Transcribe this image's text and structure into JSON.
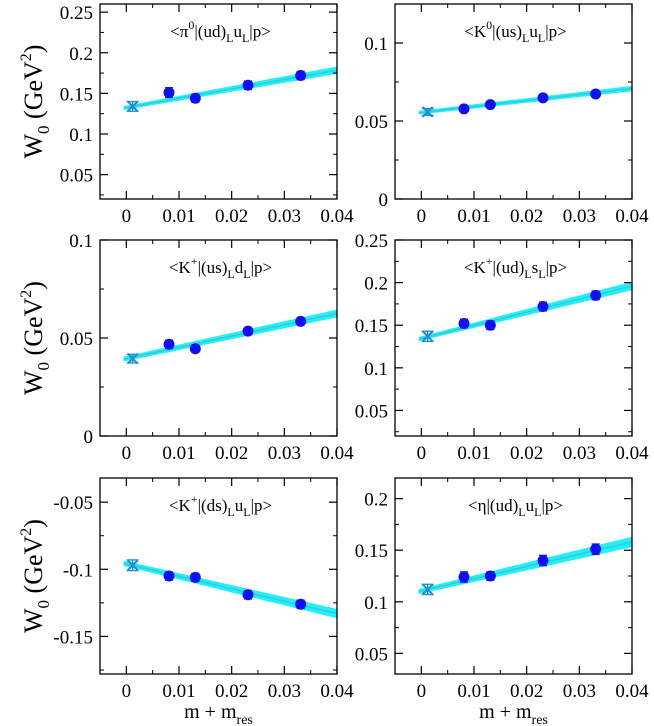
{
  "figure": {
    "ylabel_base": "W",
    "ylabel_sub": "0",
    "ylabel_unit_open": "(GeV",
    "ylabel_unit_sup": "2",
    "ylabel_unit_close": ")",
    "xlabel_base": "m + m",
    "xlabel_sub": "res"
  },
  "colors": {
    "band": "#22f0f8",
    "line": "#38c8d8",
    "point": "#1010ee",
    "chiral_point": "#1e8cd0",
    "axis": "#000000"
  },
  "chart_data": [
    {
      "type": "scatter",
      "title_parts": [
        [
          "<",
          ""
        ],
        [
          "π",
          ""
        ],
        [
          "0",
          "sup"
        ],
        [
          "|(ud)",
          ""
        ],
        [
          "L",
          "sub"
        ],
        [
          "u",
          ""
        ],
        [
          "L",
          "sub"
        ],
        [
          "|p>",
          ""
        ]
      ],
      "xlim": [
        -0.005,
        0.04
      ],
      "ylim": [
        0.02,
        0.26
      ],
      "xticks": [
        0,
        0.01,
        0.02,
        0.03,
        0.04
      ],
      "xticklabels": [
        "0",
        "0.01",
        "0.02",
        "0.03",
        "0.04"
      ],
      "yticks": [
        0.05,
        0.1,
        0.15,
        0.2,
        0.25
      ],
      "yticklabels": [
        "0.05",
        "0.1",
        "0.15",
        "0.2",
        "0.25"
      ],
      "show_xlabel": false,
      "show_ylabel": true,
      "points": [
        {
          "x": 0.0081,
          "y": 0.151,
          "err": 0.006
        },
        {
          "x": 0.0131,
          "y": 0.144,
          "err": 0.005
        },
        {
          "x": 0.0231,
          "y": 0.16,
          "err": 0.005
        },
        {
          "x": 0.0331,
          "y": 0.172,
          "err": 0.005
        }
      ],
      "chiral_point": {
        "x": 0.0012,
        "y": 0.134,
        "err": 0.006
      },
      "fit": {
        "x": [
          0,
          0.04
        ],
        "y": [
          0.1325,
          0.1785
        ],
        "band_width": [
          0.005,
          0.009
        ]
      }
    },
    {
      "type": "scatter",
      "title_parts": [
        [
          "<",
          ""
        ],
        [
          "K",
          ""
        ],
        [
          "0",
          "sup"
        ],
        [
          "|(us)",
          ""
        ],
        [
          "L",
          "sub"
        ],
        [
          "u",
          ""
        ],
        [
          "L",
          "sub"
        ],
        [
          "|p>",
          ""
        ]
      ],
      "xlim": [
        -0.005,
        0.04
      ],
      "ylim": [
        0,
        0.125
      ],
      "xticks": [
        0,
        0.01,
        0.02,
        0.03,
        0.04
      ],
      "xticklabels": [
        "0",
        "0.01",
        "0.02",
        "0.03",
        "0.04"
      ],
      "yticks": [
        0,
        0.05,
        0.1
      ],
      "yticklabels": [
        "0",
        "0.05",
        "0.1"
      ],
      "show_xlabel": false,
      "show_ylabel": false,
      "points": [
        {
          "x": 0.0081,
          "y": 0.0578,
          "err": 0.002
        },
        {
          "x": 0.0131,
          "y": 0.0605,
          "err": 0.002
        },
        {
          "x": 0.0231,
          "y": 0.0648,
          "err": 0.0018
        },
        {
          "x": 0.0331,
          "y": 0.0673,
          "err": 0.0018
        }
      ],
      "chiral_point": {
        "x": 0.0012,
        "y": 0.0558,
        "err": 0.0022
      },
      "fit": {
        "x": [
          0,
          0.04
        ],
        "y": [
          0.0555,
          0.0708
        ],
        "band_width": [
          0.0025,
          0.0035
        ]
      }
    },
    {
      "type": "scatter",
      "title_parts": [
        [
          "<",
          ""
        ],
        [
          "K",
          ""
        ],
        [
          "+",
          "sup"
        ],
        [
          "|(us)",
          ""
        ],
        [
          "L",
          "sub"
        ],
        [
          "d",
          ""
        ],
        [
          "L",
          "sub"
        ],
        [
          "|p>",
          ""
        ]
      ],
      "xlim": [
        -0.005,
        0.04
      ],
      "ylim": [
        0,
        0.1
      ],
      "xticks": [
        0,
        0.01,
        0.02,
        0.03,
        0.04
      ],
      "xticklabels": [
        "0",
        "0.01",
        "0.02",
        "0.03",
        "0.04"
      ],
      "yticks": [
        0,
        0.05,
        0.1
      ],
      "yticklabels": [
        "0",
        "0.05",
        "0.1"
      ],
      "show_xlabel": false,
      "show_ylabel": true,
      "points": [
        {
          "x": 0.0081,
          "y": 0.0468,
          "err": 0.002
        },
        {
          "x": 0.0131,
          "y": 0.0445,
          "err": 0.0018
        },
        {
          "x": 0.0231,
          "y": 0.0535,
          "err": 0.0018
        },
        {
          "x": 0.0331,
          "y": 0.0585,
          "err": 0.0018
        }
      ],
      "chiral_point": {
        "x": 0.0012,
        "y": 0.0395,
        "err": 0.0022
      },
      "fit": {
        "x": [
          0,
          0.04
        ],
        "y": [
          0.0395,
          0.0625
        ],
        "band_width": [
          0.0025,
          0.004
        ]
      }
    },
    {
      "type": "scatter",
      "title_parts": [
        [
          "<",
          ""
        ],
        [
          "K",
          ""
        ],
        [
          "+",
          "sup"
        ],
        [
          "|(ud)",
          ""
        ],
        [
          "L",
          "sub"
        ],
        [
          "s",
          ""
        ],
        [
          "L",
          "sub"
        ],
        [
          "|p>",
          ""
        ]
      ],
      "xlim": [
        -0.005,
        0.04
      ],
      "ylim": [
        0.02,
        0.25
      ],
      "xticks": [
        0,
        0.01,
        0.02,
        0.03,
        0.04
      ],
      "xticklabels": [
        "0",
        "0.01",
        "0.02",
        "0.03",
        "0.04"
      ],
      "yticks": [
        0.05,
        0.1,
        0.15,
        0.2,
        0.25
      ],
      "yticklabels": [
        "0.05",
        "0.1",
        "0.15",
        "0.2",
        "0.25"
      ],
      "show_xlabel": false,
      "show_ylabel": false,
      "points": [
        {
          "x": 0.0081,
          "y": 0.152,
          "err": 0.005
        },
        {
          "x": 0.0131,
          "y": 0.15,
          "err": 0.005
        },
        {
          "x": 0.0231,
          "y": 0.172,
          "err": 0.005
        },
        {
          "x": 0.0331,
          "y": 0.185,
          "err": 0.005
        }
      ],
      "chiral_point": {
        "x": 0.0012,
        "y": 0.137,
        "err": 0.006
      },
      "fit": {
        "x": [
          0,
          0.04
        ],
        "y": [
          0.1345,
          0.196
        ],
        "band_width": [
          0.005,
          0.01
        ]
      }
    },
    {
      "type": "scatter",
      "title_parts": [
        [
          "<",
          ""
        ],
        [
          "K",
          ""
        ],
        [
          "+",
          "sup"
        ],
        [
          "|(ds)",
          ""
        ],
        [
          "L",
          "sub"
        ],
        [
          "u",
          ""
        ],
        [
          "L",
          "sub"
        ],
        [
          "|p>",
          ""
        ]
      ],
      "xlim": [
        -0.005,
        0.04
      ],
      "ylim": [
        -0.178,
        -0.032
      ],
      "xticks": [
        0,
        0.01,
        0.02,
        0.03,
        0.04
      ],
      "xticklabels": [
        "0",
        "0.01",
        "0.02",
        "0.03",
        "0.04"
      ],
      "yticks": [
        -0.15,
        -0.1,
        -0.05
      ],
      "yticklabels": [
        "-0.15",
        "-0.1",
        "-0.05"
      ],
      "show_xlabel": true,
      "show_ylabel": true,
      "points": [
        {
          "x": 0.0081,
          "y": -0.105,
          "err": 0.003
        },
        {
          "x": 0.0131,
          "y": -0.106,
          "err": 0.003
        },
        {
          "x": 0.0231,
          "y": -0.119,
          "err": 0.003
        },
        {
          "x": 0.0331,
          "y": -0.126,
          "err": 0.003
        }
      ],
      "chiral_point": {
        "x": 0.0012,
        "y": -0.097,
        "err": 0.004
      },
      "fit": {
        "x": [
          0,
          0.04
        ],
        "y": [
          -0.096,
          -0.133
        ],
        "band_width": [
          0.004,
          0.007
        ]
      }
    },
    {
      "type": "scatter",
      "title_parts": [
        [
          "<",
          ""
        ],
        [
          "η",
          ""
        ],
        [
          "|(ud)",
          ""
        ],
        [
          "L",
          "sub"
        ],
        [
          "u",
          ""
        ],
        [
          "L",
          "sub"
        ],
        [
          "|p>",
          ""
        ]
      ],
      "xlim": [
        -0.005,
        0.04
      ],
      "ylim": [
        0.03,
        0.22
      ],
      "xticks": [
        0,
        0.01,
        0.02,
        0.03,
        0.04
      ],
      "xticklabels": [
        "0",
        "0.01",
        "0.02",
        "0.03",
        "0.04"
      ],
      "yticks": [
        0.05,
        0.1,
        0.15,
        0.2
      ],
      "yticklabels": [
        "0.05",
        "0.1",
        "0.15",
        "0.2"
      ],
      "show_xlabel": true,
      "show_ylabel": false,
      "points": [
        {
          "x": 0.0081,
          "y": 0.124,
          "err": 0.005
        },
        {
          "x": 0.0131,
          "y": 0.125,
          "err": 0.004
        },
        {
          "x": 0.0231,
          "y": 0.14,
          "err": 0.005
        },
        {
          "x": 0.0331,
          "y": 0.151,
          "err": 0.005
        }
      ],
      "chiral_point": {
        "x": 0.0012,
        "y": 0.112,
        "err": 0.005
      },
      "fit": {
        "x": [
          0,
          0.04
        ],
        "y": [
          0.1105,
          0.158
        ],
        "band_width": [
          0.005,
          0.01
        ]
      }
    }
  ]
}
